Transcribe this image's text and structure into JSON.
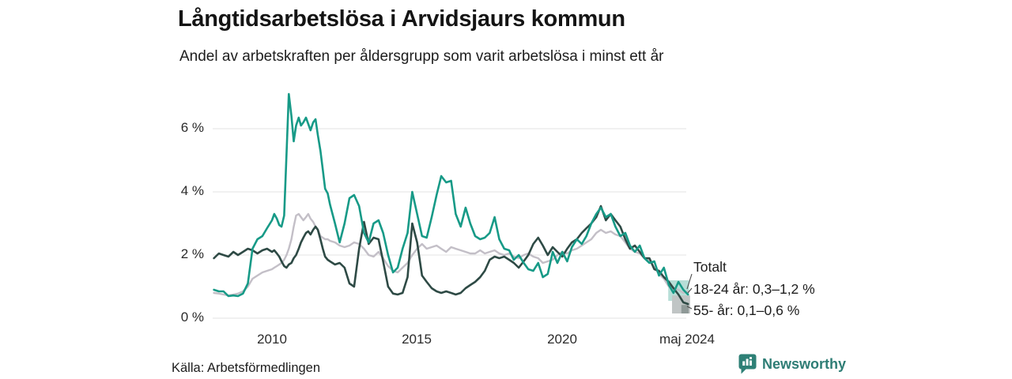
{
  "header": {
    "title": "Långtidsarbetslösa i Arvidsjaurs kommun",
    "subtitle": "Andel av arbetskraften per åldersgrupp som varit arbetslösa i minst ett år"
  },
  "footer": {
    "source": "Källa: Arbetsförmedlingen",
    "brand": "Newsworthy",
    "brand_color": "#2e7d75"
  },
  "chart_data": {
    "type": "line",
    "title": "Långtidsarbetslösa i Arvidsjaurs kommun",
    "subtitle": "Andel av arbetskraften per åldersgrupp som varit arbetslösa i minst ett år",
    "x_unit": "decimal_year",
    "xlim": [
      2008.0,
      2024.42
    ],
    "ylim": [
      0,
      7.3
    ],
    "grid": "horizontal",
    "grid_color": "#e3e3e3",
    "yticks": [
      {
        "value": 0,
        "label": "0 %"
      },
      {
        "value": 2,
        "label": "2 %"
      },
      {
        "value": 4,
        "label": "4 %"
      },
      {
        "value": 6,
        "label": "6 %"
      }
    ],
    "xticks": [
      {
        "value": 2010,
        "label": "2010"
      },
      {
        "value": 2015,
        "label": "2015"
      },
      {
        "value": 2020,
        "label": "2020"
      },
      {
        "value": 2024.33,
        "label": "maj 2024"
      }
    ],
    "x": [
      2008.0,
      2008.17,
      2008.33,
      2008.5,
      2008.67,
      2008.83,
      2009.0,
      2009.17,
      2009.33,
      2009.5,
      2009.67,
      2009.83,
      2010.0,
      2010.08,
      2010.17,
      2010.25,
      2010.33,
      2010.42,
      2010.5,
      2010.58,
      2010.67,
      2010.75,
      2010.83,
      2010.92,
      2011.0,
      2011.08,
      2011.17,
      2011.25,
      2011.33,
      2011.42,
      2011.5,
      2011.58,
      2011.67,
      2011.75,
      2011.83,
      2011.92,
      2012.0,
      2012.17,
      2012.33,
      2012.5,
      2012.67,
      2012.83,
      2013.0,
      2013.17,
      2013.33,
      2013.5,
      2013.67,
      2013.83,
      2014.0,
      2014.17,
      2014.33,
      2014.5,
      2014.67,
      2014.83,
      2015.0,
      2015.17,
      2015.33,
      2015.5,
      2015.67,
      2015.83,
      2016.0,
      2016.17,
      2016.33,
      2016.5,
      2016.67,
      2016.83,
      2017.0,
      2017.17,
      2017.33,
      2017.5,
      2017.67,
      2017.83,
      2018.0,
      2018.17,
      2018.33,
      2018.5,
      2018.67,
      2018.83,
      2019.0,
      2019.17,
      2019.33,
      2019.5,
      2019.67,
      2019.83,
      2020.0,
      2020.17,
      2020.33,
      2020.5,
      2020.67,
      2020.83,
      2021.0,
      2021.17,
      2021.33,
      2021.5,
      2021.67,
      2021.83,
      2022.0,
      2022.17,
      2022.33,
      2022.5,
      2022.67,
      2022.83,
      2023.0,
      2023.17,
      2023.33,
      2023.5,
      2023.67,
      2023.83,
      2024.0,
      2024.17,
      2024.33
    ],
    "series": [
      {
        "name": "18-24 år",
        "color": "#179a87",
        "width": 2.6,
        "values": [
          0.9,
          0.85,
          0.85,
          0.7,
          0.72,
          0.7,
          0.78,
          1.1,
          2.2,
          2.5,
          2.6,
          2.85,
          3.1,
          3.3,
          3.15,
          2.95,
          2.9,
          3.25,
          5.2,
          7.1,
          6.4,
          5.6,
          6.1,
          6.35,
          6.1,
          6.2,
          6.35,
          6.15,
          5.95,
          6.2,
          6.3,
          5.8,
          5.3,
          4.7,
          4.1,
          3.95,
          3.6,
          3.0,
          2.4,
          3.0,
          3.8,
          3.9,
          3.55,
          2.7,
          2.4,
          3.0,
          3.1,
          2.7,
          2.0,
          1.45,
          1.6,
          2.2,
          2.7,
          4.0,
          3.3,
          2.6,
          2.55,
          3.2,
          3.9,
          4.5,
          4.3,
          4.35,
          3.3,
          2.9,
          3.5,
          3.0,
          2.6,
          2.5,
          2.55,
          2.7,
          3.2,
          2.5,
          2.2,
          2.15,
          1.85,
          2.0,
          1.75,
          1.55,
          1.5,
          1.75,
          1.3,
          1.4,
          2.1,
          1.75,
          2.1,
          1.8,
          2.25,
          2.5,
          2.35,
          2.6,
          3.0,
          3.3,
          3.5,
          3.2,
          3.3,
          2.9,
          2.6,
          2.7,
          2.3,
          2.1,
          2.3,
          1.9,
          1.75,
          1.8,
          1.35,
          1.6,
          1.05,
          0.8,
          1.15,
          0.9,
          0.75
        ]
      },
      {
        "name": "55- år",
        "color": "#2e4a45",
        "width": 2.6,
        "values": [
          1.9,
          2.05,
          2.0,
          1.95,
          2.1,
          2.0,
          2.1,
          2.2,
          2.15,
          2.05,
          2.15,
          2.2,
          2.1,
          2.15,
          2.05,
          1.95,
          1.8,
          1.65,
          1.6,
          1.7,
          1.75,
          1.9,
          2.0,
          2.2,
          2.4,
          2.55,
          2.7,
          2.75,
          2.65,
          2.8,
          2.9,
          2.8,
          2.5,
          2.2,
          1.95,
          1.85,
          1.8,
          1.7,
          1.75,
          1.6,
          1.1,
          1.0,
          2.2,
          3.05,
          2.35,
          2.55,
          2.5,
          1.8,
          1.0,
          0.78,
          0.75,
          0.8,
          1.3,
          3.0,
          2.4,
          1.35,
          1.15,
          0.95,
          0.85,
          0.8,
          0.85,
          0.8,
          0.75,
          0.8,
          0.95,
          1.05,
          1.15,
          1.3,
          1.5,
          1.85,
          1.95,
          1.9,
          1.95,
          1.85,
          1.75,
          1.6,
          1.8,
          2.0,
          2.35,
          2.55,
          2.3,
          2.0,
          2.25,
          2.1,
          1.95,
          2.2,
          2.4,
          2.5,
          2.7,
          2.85,
          3.0,
          3.2,
          3.55,
          3.1,
          3.3,
          3.1,
          2.9,
          2.5,
          2.2,
          2.3,
          2.1,
          1.9,
          1.9,
          1.55,
          1.5,
          1.3,
          1.15,
          0.95,
          0.75,
          0.5,
          0.45
        ]
      },
      {
        "name": "Totalt",
        "color": "#c3bfc7",
        "width": 2.4,
        "values": [
          0.8,
          0.78,
          0.75,
          0.72,
          0.75,
          0.78,
          0.85,
          1.0,
          1.25,
          1.35,
          1.45,
          1.5,
          1.55,
          1.6,
          1.65,
          1.7,
          1.75,
          1.85,
          2.0,
          2.2,
          2.5,
          2.9,
          3.25,
          3.3,
          3.2,
          3.1,
          3.2,
          3.3,
          3.15,
          3.05,
          2.9,
          2.8,
          2.6,
          2.55,
          2.5,
          2.5,
          2.45,
          2.4,
          2.3,
          2.25,
          2.3,
          2.4,
          2.35,
          2.2,
          2.0,
          1.95,
          2.1,
          1.9,
          1.65,
          1.5,
          1.45,
          1.6,
          1.75,
          2.0,
          2.2,
          2.35,
          2.2,
          2.25,
          2.3,
          2.2,
          2.1,
          2.25,
          2.2,
          2.15,
          2.1,
          2.05,
          2.05,
          2.15,
          2.05,
          2.1,
          2.15,
          2.05,
          2.0,
          2.05,
          1.95,
          1.9,
          2.0,
          2.05,
          1.95,
          1.9,
          1.75,
          1.8,
          1.85,
          2.0,
          2.1,
          2.05,
          2.15,
          2.2,
          2.3,
          2.4,
          2.5,
          2.7,
          2.8,
          2.7,
          2.75,
          2.65,
          2.6,
          2.4,
          2.2,
          2.1,
          2.05,
          1.9,
          1.85,
          1.6,
          1.4,
          1.25,
          1.0,
          0.95,
          0.9,
          0.8,
          0.85
        ]
      }
    ],
    "uncertainty_bands": [
      {
        "series": "18-24 år",
        "color": "#b7ded7",
        "t0": 2023.65,
        "t1": 2024.37,
        "v0": 0.55,
        "v1": 1.2
      },
      {
        "series": "55- år",
        "color": "#c0c5c5",
        "t0": 2023.78,
        "t1": 2024.4,
        "v0": 0.15,
        "v1": 0.72
      },
      {
        "series": "55- år latest",
        "color": "#8f9997",
        "t0": 2024.1,
        "t1": 2024.35,
        "v0": 0.15,
        "v1": 0.42
      }
    ],
    "annotations": [
      {
        "label": "Totalt",
        "target": {
          "x": 2024.33,
          "y": 0.85
        }
      },
      {
        "label": "18-24 år: 0,3–1,2 %",
        "target": {
          "x": 2024.33,
          "y": 0.75
        }
      },
      {
        "label": "55- år: 0,1–0,6 %",
        "target": {
          "x": 2024.33,
          "y": 0.45
        }
      }
    ]
  }
}
